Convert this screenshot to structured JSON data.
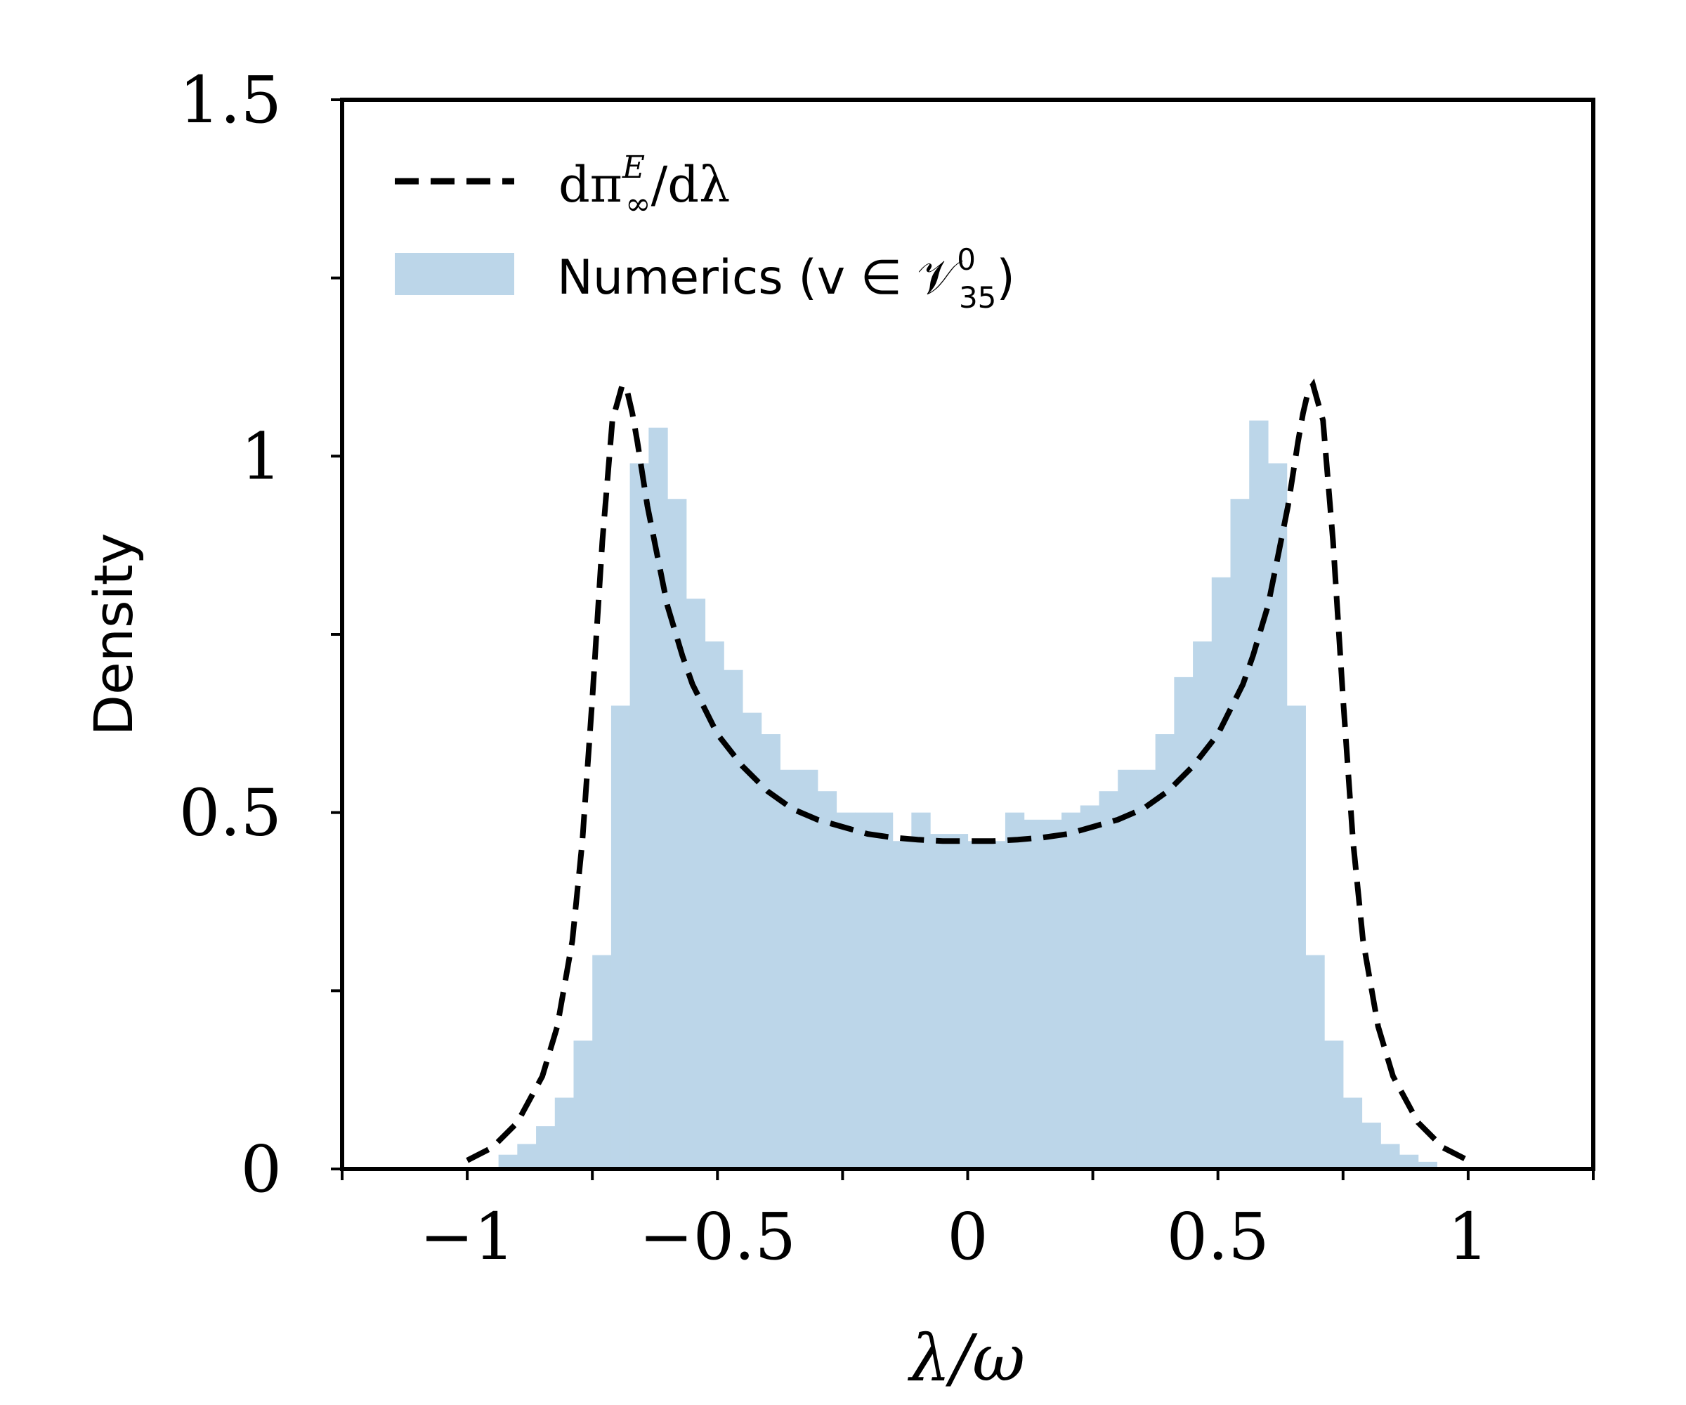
{
  "chart_data": {
    "type": "bar",
    "xlabel": "λ/ω",
    "ylabel": "Density",
    "xlim": [
      -1.25,
      1.25
    ],
    "ylim": [
      0,
      1.5
    ],
    "x_ticks": [
      {
        "value": -1,
        "label": "−1"
      },
      {
        "value": -0.5,
        "label": "−0.5"
      },
      {
        "value": 0,
        "label": "0"
      },
      {
        "value": 0.5,
        "label": "0.5"
      },
      {
        "value": 1,
        "label": "1"
      }
    ],
    "x_minor_ticks": [
      -1.25,
      -0.75,
      -0.25,
      0.25,
      0.75,
      1.25
    ],
    "y_ticks": [
      {
        "value": 0,
        "label": "0"
      },
      {
        "value": 0.5,
        "label": "0.5"
      },
      {
        "value": 1,
        "label": "1"
      },
      {
        "value": 1.5,
        "label": "1.5"
      }
    ],
    "y_minor_ticks": [
      0.25,
      0.75,
      1.25
    ],
    "grid": false,
    "legend_position": "top-left",
    "legend": [
      {
        "label_main": "dπ",
        "label_sup": "E",
        "label_sub": "∞",
        "label_tail": "/dλ",
        "style": "dashed-line"
      },
      {
        "label_main": "Numerics (v ∈ 𝒱",
        "label_sup": "0",
        "label_sub": "35",
        "label_tail": ")",
        "style": "filled-patch"
      }
    ],
    "series": [
      {
        "name": "Numerics (v ∈ 𝒱⁰₃₅)",
        "kind": "histogram",
        "color": "#bcd6e9",
        "bin_width": 0.0375,
        "bin_start": -0.9375,
        "values": [
          0.02,
          0.035,
          0.06,
          0.1,
          0.18,
          0.3,
          0.65,
          0.99,
          1.04,
          0.94,
          0.8,
          0.74,
          0.7,
          0.64,
          0.61,
          0.56,
          0.56,
          0.53,
          0.5,
          0.5,
          0.5,
          0.46,
          0.5,
          0.47,
          0.47,
          0.46,
          0.46,
          0.5,
          0.49,
          0.49,
          0.5,
          0.51,
          0.53,
          0.56,
          0.56,
          0.61,
          0.69,
          0.74,
          0.83,
          0.94,
          1.05,
          0.99,
          0.65,
          0.3,
          0.18,
          0.1,
          0.065,
          0.035,
          0.02,
          0.01
        ]
      },
      {
        "name": "dπ^E_∞/dλ",
        "kind": "line",
        "style": "dashed",
        "color": "#000000",
        "x": [
          -1.0,
          -0.95,
          -0.9,
          -0.85,
          -0.82,
          -0.79,
          -0.77,
          -0.75,
          -0.73,
          -0.71,
          -0.69,
          -0.68,
          -0.67,
          -0.66,
          -0.64,
          -0.62,
          -0.6,
          -0.57,
          -0.55,
          -0.5,
          -0.45,
          -0.4,
          -0.35,
          -0.3,
          -0.25,
          -0.2,
          -0.15,
          -0.1,
          -0.05,
          0.0,
          0.05,
          0.1,
          0.15,
          0.2,
          0.25,
          0.3,
          0.35,
          0.4,
          0.45,
          0.5,
          0.55,
          0.57,
          0.6,
          0.62,
          0.64,
          0.66,
          0.67,
          0.68,
          0.69,
          0.71,
          0.73,
          0.75,
          0.77,
          0.79,
          0.82,
          0.85,
          0.9,
          0.95,
          1.0
        ],
        "y": [
          0.012,
          0.03,
          0.065,
          0.13,
          0.2,
          0.32,
          0.46,
          0.66,
          0.88,
          1.05,
          1.1,
          1.09,
          1.06,
          1.02,
          0.93,
          0.86,
          0.79,
          0.72,
          0.68,
          0.61,
          0.565,
          0.53,
          0.505,
          0.49,
          0.48,
          0.47,
          0.465,
          0.462,
          0.46,
          0.46,
          0.46,
          0.462,
          0.465,
          0.47,
          0.48,
          0.49,
          0.505,
          0.53,
          0.565,
          0.61,
          0.68,
          0.72,
          0.79,
          0.86,
          0.93,
          1.02,
          1.06,
          1.09,
          1.1,
          1.05,
          0.88,
          0.66,
          0.46,
          0.32,
          0.2,
          0.13,
          0.065,
          0.03,
          0.012
        ]
      }
    ]
  }
}
